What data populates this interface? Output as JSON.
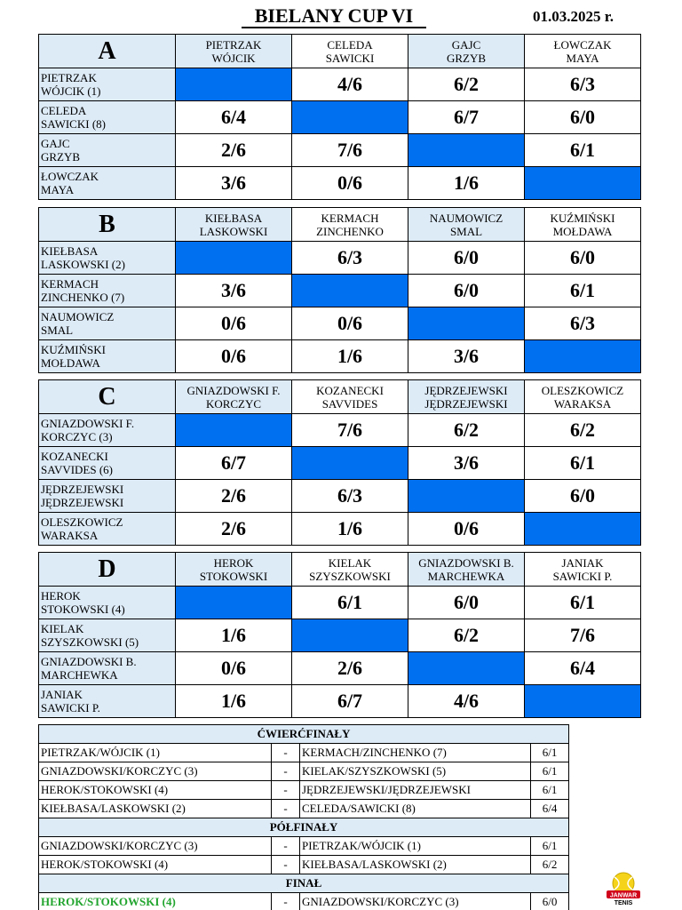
{
  "title": "BIELANY CUP VI",
  "date": "01.03.2025 r.",
  "groups": [
    {
      "letter": "A",
      "columns": [
        [
          "PIETRZAK",
          "WÓJCIK"
        ],
        [
          "CELEDA",
          "SAWICKI"
        ],
        [
          "GAJC",
          "GRZYB"
        ],
        [
          "ŁOWCZAK",
          "MAYA"
        ]
      ],
      "rows": [
        {
          "line1": "PIETRZAK",
          "line2": "WÓJCIK (1)",
          "scores": [
            "",
            "4/6",
            "6/2",
            "6/3"
          ]
        },
        {
          "line1": "CELEDA",
          "line2": "SAWICKI (8)",
          "scores": [
            "6/4",
            "",
            "6/7",
            "6/0"
          ]
        },
        {
          "line1": "GAJC",
          "line2": "GRZYB",
          "scores": [
            "2/6",
            "7/6",
            "",
            "6/1"
          ]
        },
        {
          "line1": "ŁOWCZAK",
          "line2": "MAYA",
          "scores": [
            "3/6",
            "0/6",
            "1/6",
            ""
          ]
        }
      ]
    },
    {
      "letter": "B",
      "columns": [
        [
          "KIEŁBASA",
          "LASKOWSKI"
        ],
        [
          "KERMACH",
          "ZINCHENKO"
        ],
        [
          "NAUMOWICZ",
          "SMAL"
        ],
        [
          "KUŹMIŃSKI",
          "MOŁDAWA"
        ]
      ],
      "rows": [
        {
          "line1": "KIEŁBASA",
          "line2": "LASKOWSKI (2)",
          "scores": [
            "",
            "6/3",
            "6/0",
            "6/0"
          ]
        },
        {
          "line1": "KERMACH",
          "line2": "ZINCHENKO (7)",
          "scores": [
            "3/6",
            "",
            "6/0",
            "6/1"
          ]
        },
        {
          "line1": "NAUMOWICZ",
          "line2": "SMAL",
          "scores": [
            "0/6",
            "0/6",
            "",
            "6/3"
          ]
        },
        {
          "line1": "KUŹMIŃSKI",
          "line2": "MOŁDAWA",
          "scores": [
            "0/6",
            "1/6",
            "3/6",
            ""
          ]
        }
      ]
    },
    {
      "letter": "C",
      "columns": [
        [
          "GNIAZDOWSKI F.",
          "KORCZYC"
        ],
        [
          "KOZANECKI",
          "SAVVIDES"
        ],
        [
          "JĘDRZEJEWSKI",
          "JĘDRZEJEWSKI"
        ],
        [
          "OLESZKOWICZ",
          "WARAKSA"
        ]
      ],
      "rows": [
        {
          "line1": "GNIAZDOWSKI F.",
          "line2": "KORCZYC (3)",
          "scores": [
            "",
            "7/6",
            "6/2",
            "6/2"
          ]
        },
        {
          "line1": "KOZANECKI",
          "line2": "SAVVIDES (6)",
          "scores": [
            "6/7",
            "",
            "3/6",
            "6/1"
          ]
        },
        {
          "line1": "JĘDRZEJEWSKI",
          "line2": "JĘDRZEJEWSKI",
          "scores": [
            "2/6",
            "6/3",
            "",
            "6/0"
          ]
        },
        {
          "line1": "OLESZKOWICZ",
          "line2": "WARAKSA",
          "scores": [
            "2/6",
            "1/6",
            "0/6",
            ""
          ]
        }
      ]
    },
    {
      "letter": "D",
      "columns": [
        [
          "HEROK",
          "STOKOWSKI"
        ],
        [
          "KIELAK",
          "SZYSZKOWSKI"
        ],
        [
          "GNIAZDOWSKI B.",
          "MARCHEWKA"
        ],
        [
          "JANIAK",
          "SAWICKI P."
        ]
      ],
      "rows": [
        {
          "line1": "HEROK",
          "line2": "STOKOWSKI (4)",
          "scores": [
            "",
            "6/1",
            "6/0",
            "6/1"
          ]
        },
        {
          "line1": "KIELAK",
          "line2": "SZYSZKOWSKI (5)",
          "scores": [
            "1/6",
            "",
            "6/2",
            "7/6"
          ]
        },
        {
          "line1": "GNIAZDOWSKI B.",
          "line2": "MARCHEWKA",
          "scores": [
            "0/6",
            "2/6",
            "",
            "6/4"
          ]
        },
        {
          "line1": "JANIAK",
          "line2": "SAWICKI P.",
          "scores": [
            "1/6",
            "6/7",
            "4/6",
            ""
          ]
        }
      ]
    }
  ],
  "knockout": {
    "quarterfinals_label": "ĆWIERĆFINAŁY",
    "quarterfinals": [
      {
        "a": "PIETRZAK/WÓJCIK (1)",
        "sep": "-",
        "b": "KERMACH/ZINCHENKO (7)",
        "score": "6/1"
      },
      {
        "a": "GNIAZDOWSKI/KORCZYC (3)",
        "sep": "-",
        "b": "KIELAK/SZYSZKOWSKI (5)",
        "score": "6/1"
      },
      {
        "a": "HEROK/STOKOWSKI (4)",
        "sep": "-",
        "b": "JĘDRZEJEWSKI/JĘDRZEJEWSKI",
        "score": "6/1"
      },
      {
        "a": "KIEŁBASA/LASKOWSKI (2)",
        "sep": "-",
        "b": "CELEDA/SAWICKI (8)",
        "score": "6/4"
      }
    ],
    "semifinals_label": "PÓŁFINAŁY",
    "semifinals": [
      {
        "a": "GNIAZDOWSKI/KORCZYC (3)",
        "sep": "-",
        "b": "PIETRZAK/WÓJCIK (1)",
        "score": "6/1"
      },
      {
        "a": "HEROK/STOKOWSKI (4)",
        "sep": "-",
        "b": "KIEŁBASA/LASKOWSKI (2)",
        "score": "6/2"
      }
    ],
    "final_label": "FINAŁ",
    "final": {
      "a": "HEROK/STOKOWSKI (4)",
      "sep": "-",
      "b": "GNIAZDOWSKI/KORCZYC (3)",
      "score": "6/0"
    }
  },
  "logo": {
    "icon": "tennis-ball-icon",
    "text_top": "JANWAR",
    "text_bottom": "TENIS"
  },
  "colors": {
    "diagonal": "#0070f0",
    "header_bg": "#ddebf7",
    "winner": "#22a52f"
  }
}
